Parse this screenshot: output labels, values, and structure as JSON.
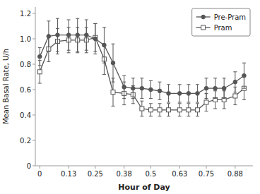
{
  "chart_data": {
    "type": "line",
    "xlabel": "Hour of Day",
    "ylabel": "Mean Basal Rate, U/h",
    "xlim": [
      -0.02,
      0.96
    ],
    "xticks": [
      0,
      0.13,
      0.25,
      0.38,
      0.5,
      0.63,
      0.75,
      0.88
    ],
    "ylim": [
      0,
      1.25
    ],
    "yticks": [
      0,
      0.2,
      0.4,
      0.6,
      0.8,
      {
        "value": 1.0,
        "label": "1.0"
      },
      1.2
    ],
    "grid": false,
    "legend": "upper right",
    "series": [
      {
        "name": "Pre-Pram",
        "color": "#555555",
        "marker": "circle",
        "line_style": "solid",
        "x": [
          0,
          0.04,
          0.08,
          0.13,
          0.17,
          0.21,
          0.25,
          0.29,
          0.33,
          0.38,
          0.42,
          0.46,
          0.5,
          0.54,
          0.58,
          0.63,
          0.67,
          0.71,
          0.75,
          0.79,
          0.83,
          0.88,
          0.92
        ],
        "values": [
          0.86,
          1.02,
          1.03,
          1.03,
          1.03,
          1.03,
          1.0,
          0.95,
          0.81,
          0.62,
          0.61,
          0.61,
          0.6,
          0.59,
          0.57,
          0.57,
          0.57,
          0.57,
          0.61,
          0.61,
          0.61,
          0.66,
          0.71
        ],
        "errors": [
          0.07,
          0.12,
          0.13,
          0.12,
          0.13,
          0.12,
          0.12,
          0.14,
          0.15,
          0.09,
          0.08,
          0.08,
          0.07,
          0.07,
          0.07,
          0.07,
          0.07,
          0.07,
          0.08,
          0.08,
          0.08,
          0.08,
          0.1
        ]
      },
      {
        "name": "Pram",
        "color": "#555555",
        "marker": "open-square",
        "line_style": "solid",
        "x": [
          0,
          0.04,
          0.08,
          0.13,
          0.17,
          0.21,
          0.25,
          0.29,
          0.33,
          0.38,
          0.42,
          0.46,
          0.5,
          0.54,
          0.58,
          0.63,
          0.67,
          0.71,
          0.75,
          0.79,
          0.83,
          0.88,
          0.92
        ],
        "values": [
          0.74,
          0.92,
          0.98,
          0.99,
          0.99,
          0.99,
          1.01,
          0.84,
          0.58,
          0.57,
          0.56,
          0.45,
          0.44,
          0.44,
          0.44,
          0.44,
          0.44,
          0.44,
          0.5,
          0.52,
          0.52,
          0.55,
          0.61
        ],
        "errors": [
          0.09,
          0.1,
          0.1,
          0.1,
          0.1,
          0.1,
          0.11,
          0.12,
          0.11,
          0.09,
          0.07,
          0.06,
          0.05,
          0.05,
          0.05,
          0.05,
          0.05,
          0.05,
          0.07,
          0.07,
          0.07,
          0.07,
          0.09
        ]
      }
    ]
  }
}
